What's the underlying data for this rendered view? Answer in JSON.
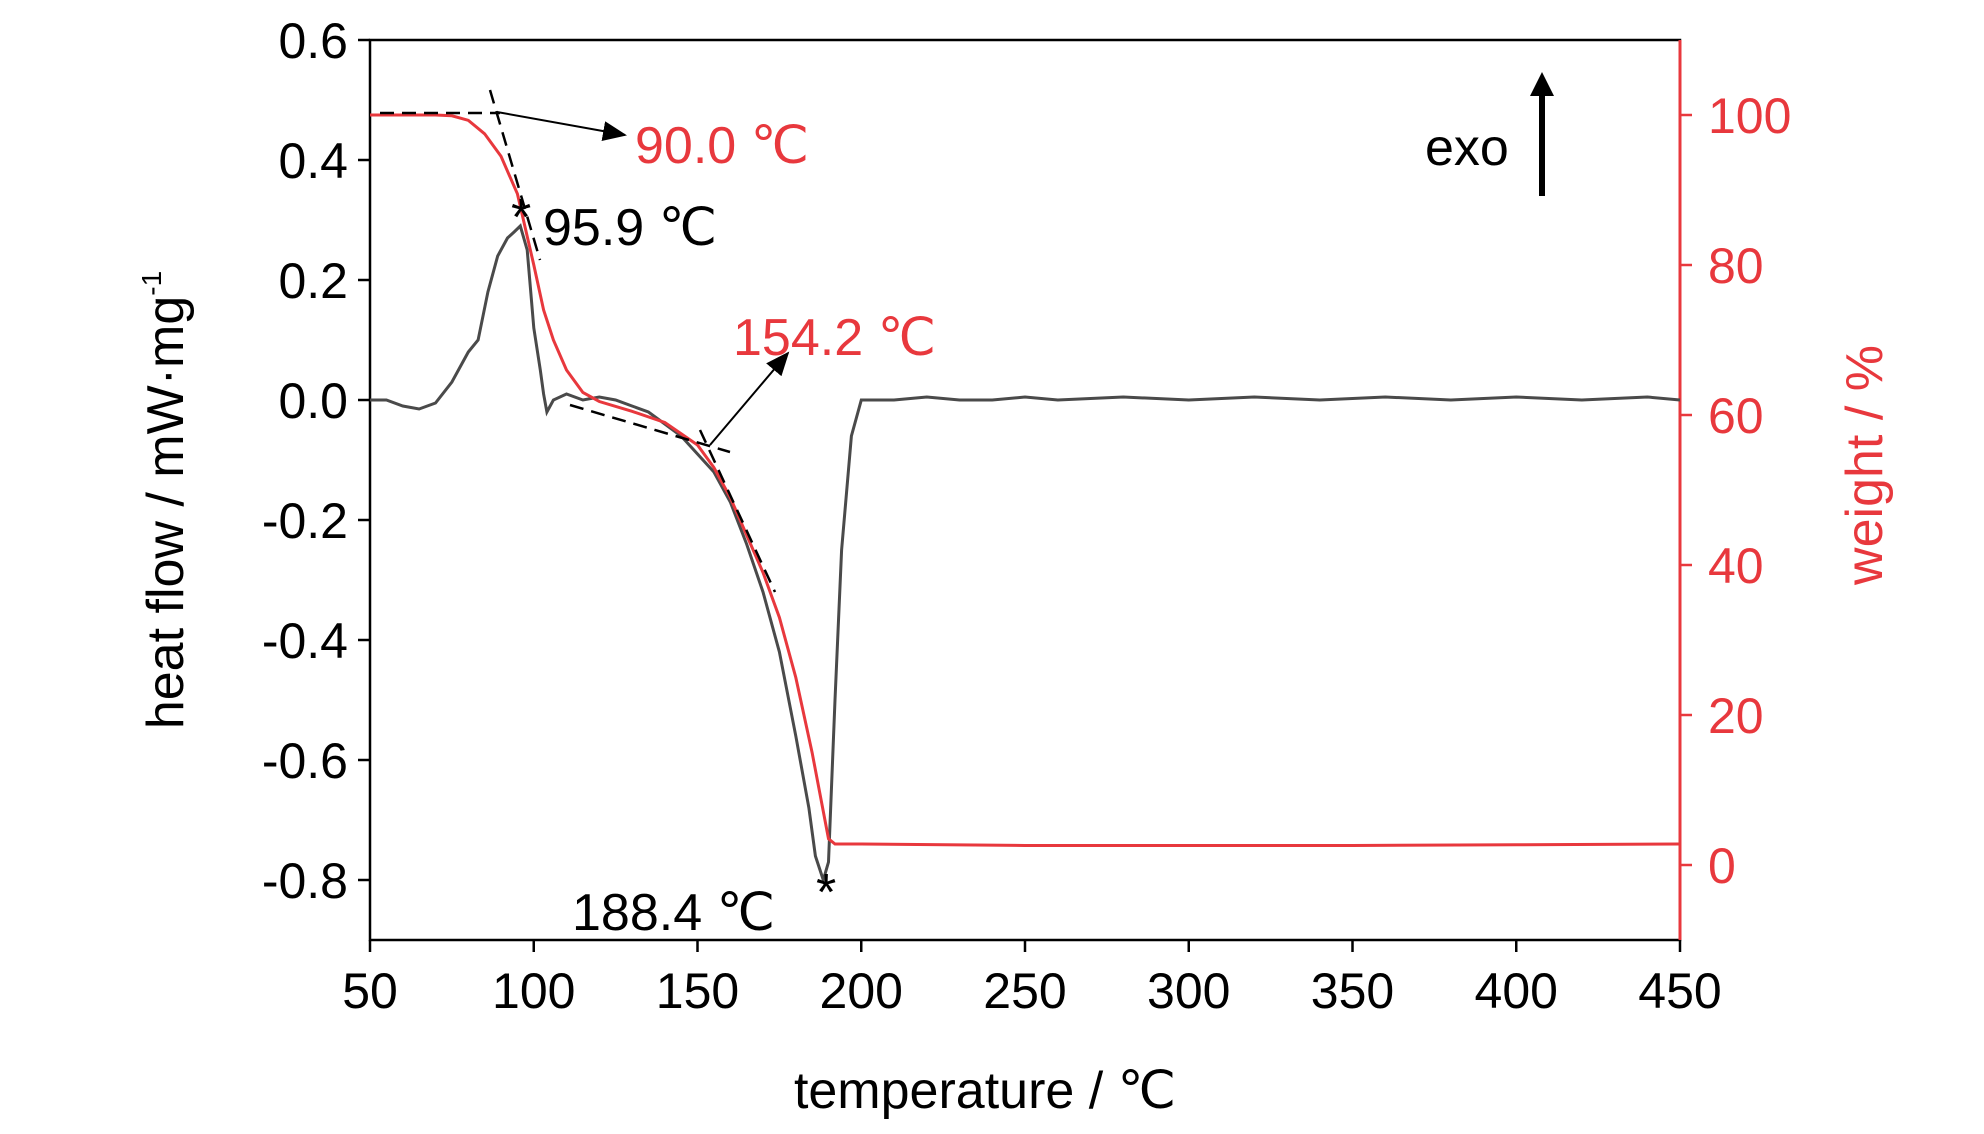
{
  "colors": {
    "heat_flow": "#4a4a4a",
    "weight": "#e8383d",
    "axis": "#000000",
    "dashed": "#000000"
  },
  "chart_data": {
    "type": "line",
    "xlabel": "temperature / ℃",
    "ylabel_left_main": "heat flow / mW·mg",
    "ylabel_left_sup": "-1",
    "ylabel_right": "weight / %",
    "xlim": [
      50,
      450
    ],
    "ylim_left": [
      -0.9,
      0.6
    ],
    "ylim_right": [
      -10,
      110
    ],
    "x_ticks": [
      50,
      100,
      150,
      200,
      250,
      300,
      350,
      400,
      450
    ],
    "x_tick_labels": [
      "50",
      "100",
      "150",
      "200",
      "250",
      "300",
      "350",
      "400",
      "450"
    ],
    "y_left_ticks": [
      -0.8,
      -0.6,
      -0.4,
      -0.2,
      0.0,
      0.2,
      0.4,
      0.6
    ],
    "y_left_tick_labels": [
      "-0.8",
      "-0.6",
      "-0.4",
      "-0.2",
      "0.0",
      "0.2",
      "0.4",
      "0.6"
    ],
    "y_right_ticks": [
      0,
      20,
      40,
      60,
      80,
      100
    ],
    "y_right_tick_labels": [
      "0",
      "20",
      "40",
      "60",
      "80",
      "100"
    ],
    "grid": false,
    "series": [
      {
        "axis": "left",
        "points": [
          [
            50,
            0.0
          ],
          [
            55,
            0.0
          ],
          [
            60,
            -0.01
          ],
          [
            65,
            -0.015
          ],
          [
            70,
            -0.005
          ],
          [
            75,
            0.03
          ],
          [
            80,
            0.08
          ],
          [
            83,
            0.1
          ],
          [
            86,
            0.18
          ],
          [
            89,
            0.24
          ],
          [
            92,
            0.27
          ],
          [
            94,
            0.28
          ],
          [
            95.9,
            0.29
          ],
          [
            98,
            0.25
          ],
          [
            100,
            0.12
          ],
          [
            102,
            0.05
          ],
          [
            103,
            0.01
          ],
          [
            104,
            -0.02
          ],
          [
            106,
            0.0
          ],
          [
            110,
            0.01
          ],
          [
            115,
            0.0
          ],
          [
            120,
            0.005
          ],
          [
            125,
            0.0
          ],
          [
            130,
            -0.01
          ],
          [
            135,
            -0.02
          ],
          [
            140,
            -0.04
          ],
          [
            145,
            -0.06
          ],
          [
            150,
            -0.09
          ],
          [
            155,
            -0.12
          ],
          [
            160,
            -0.17
          ],
          [
            165,
            -0.24
          ],
          [
            170,
            -0.32
          ],
          [
            175,
            -0.42
          ],
          [
            180,
            -0.56
          ],
          [
            184,
            -0.68
          ],
          [
            186,
            -0.76
          ],
          [
            188.4,
            -0.8
          ],
          [
            190,
            -0.77
          ],
          [
            192,
            -0.5
          ],
          [
            194,
            -0.25
          ],
          [
            197,
            -0.06
          ],
          [
            200,
            0.0
          ],
          [
            210,
            0.0
          ],
          [
            220,
            0.005
          ],
          [
            230,
            0.0
          ],
          [
            240,
            0.0
          ],
          [
            250,
            0.005
          ],
          [
            260,
            0.0
          ],
          [
            280,
            0.005
          ],
          [
            300,
            0.0
          ],
          [
            320,
            0.005
          ],
          [
            340,
            0.0
          ],
          [
            360,
            0.005
          ],
          [
            380,
            0.0
          ],
          [
            400,
            0.005
          ],
          [
            420,
            0.0
          ],
          [
            440,
            0.005
          ],
          [
            450,
            0.0
          ]
        ]
      },
      {
        "axis": "right",
        "points": [
          [
            50,
            100
          ],
          [
            60,
            100
          ],
          [
            70,
            100
          ],
          [
            75,
            99.9
          ],
          [
            80,
            99.3
          ],
          [
            85,
            97.5
          ],
          [
            90,
            94.5
          ],
          [
            95,
            89.5
          ],
          [
            100,
            80
          ],
          [
            103,
            74
          ],
          [
            106,
            70
          ],
          [
            110,
            66
          ],
          [
            115,
            63
          ],
          [
            120,
            61.8
          ],
          [
            130,
            60.5
          ],
          [
            140,
            59
          ],
          [
            150,
            56
          ],
          [
            155,
            53
          ],
          [
            160,
            49
          ],
          [
            165,
            44
          ],
          [
            170,
            39
          ],
          [
            175,
            33
          ],
          [
            180,
            25
          ],
          [
            185,
            15
          ],
          [
            190,
            3.5
          ],
          [
            192,
            2.8
          ],
          [
            200,
            2.8
          ],
          [
            250,
            2.6
          ],
          [
            300,
            2.6
          ],
          [
            350,
            2.6
          ],
          [
            400,
            2.7
          ],
          [
            450,
            2.8
          ]
        ]
      }
    ],
    "annotations": [
      {
        "text": "90.0 ℃",
        "color": "red",
        "x": 90.0,
        "axis": "right",
        "y": 100
      },
      {
        "text": "95.9 ℃",
        "color": "black",
        "x": 95.9,
        "axis": "left",
        "y": 0.29
      },
      {
        "text": "154.2 ℃",
        "color": "red",
        "x": 154.2,
        "axis": "right",
        "y": 55
      },
      {
        "text": "188.4 ℃",
        "color": "black",
        "x": 188.4,
        "axis": "left",
        "y": -0.8
      }
    ],
    "exo_label": "exo",
    "peak_marker": "*"
  }
}
